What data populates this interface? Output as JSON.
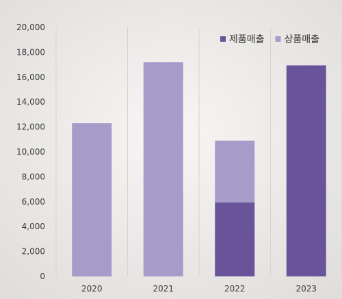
{
  "chart_data": {
    "type": "bar",
    "stacked": true,
    "categories": [
      "2020",
      "2021",
      "2022",
      "2023"
    ],
    "series": [
      {
        "name": "제품매출",
        "color": "#6a5499",
        "values": [
          0,
          0,
          5950,
          16950
        ]
      },
      {
        "name": "상품매출",
        "color": "#a59cc9",
        "values": [
          12300,
          17200,
          4950,
          0
        ]
      }
    ],
    "y_ticks": [
      "0",
      "2,000",
      "4,000",
      "6,000",
      "8,000",
      "10,000",
      "12,000",
      "14,000",
      "16,000",
      "18,000",
      "20,000"
    ],
    "ylim": [
      0,
      20000
    ],
    "grid": "vertical-separators",
    "legend": "top-right",
    "title": "",
    "xlabel": "",
    "ylabel": ""
  }
}
